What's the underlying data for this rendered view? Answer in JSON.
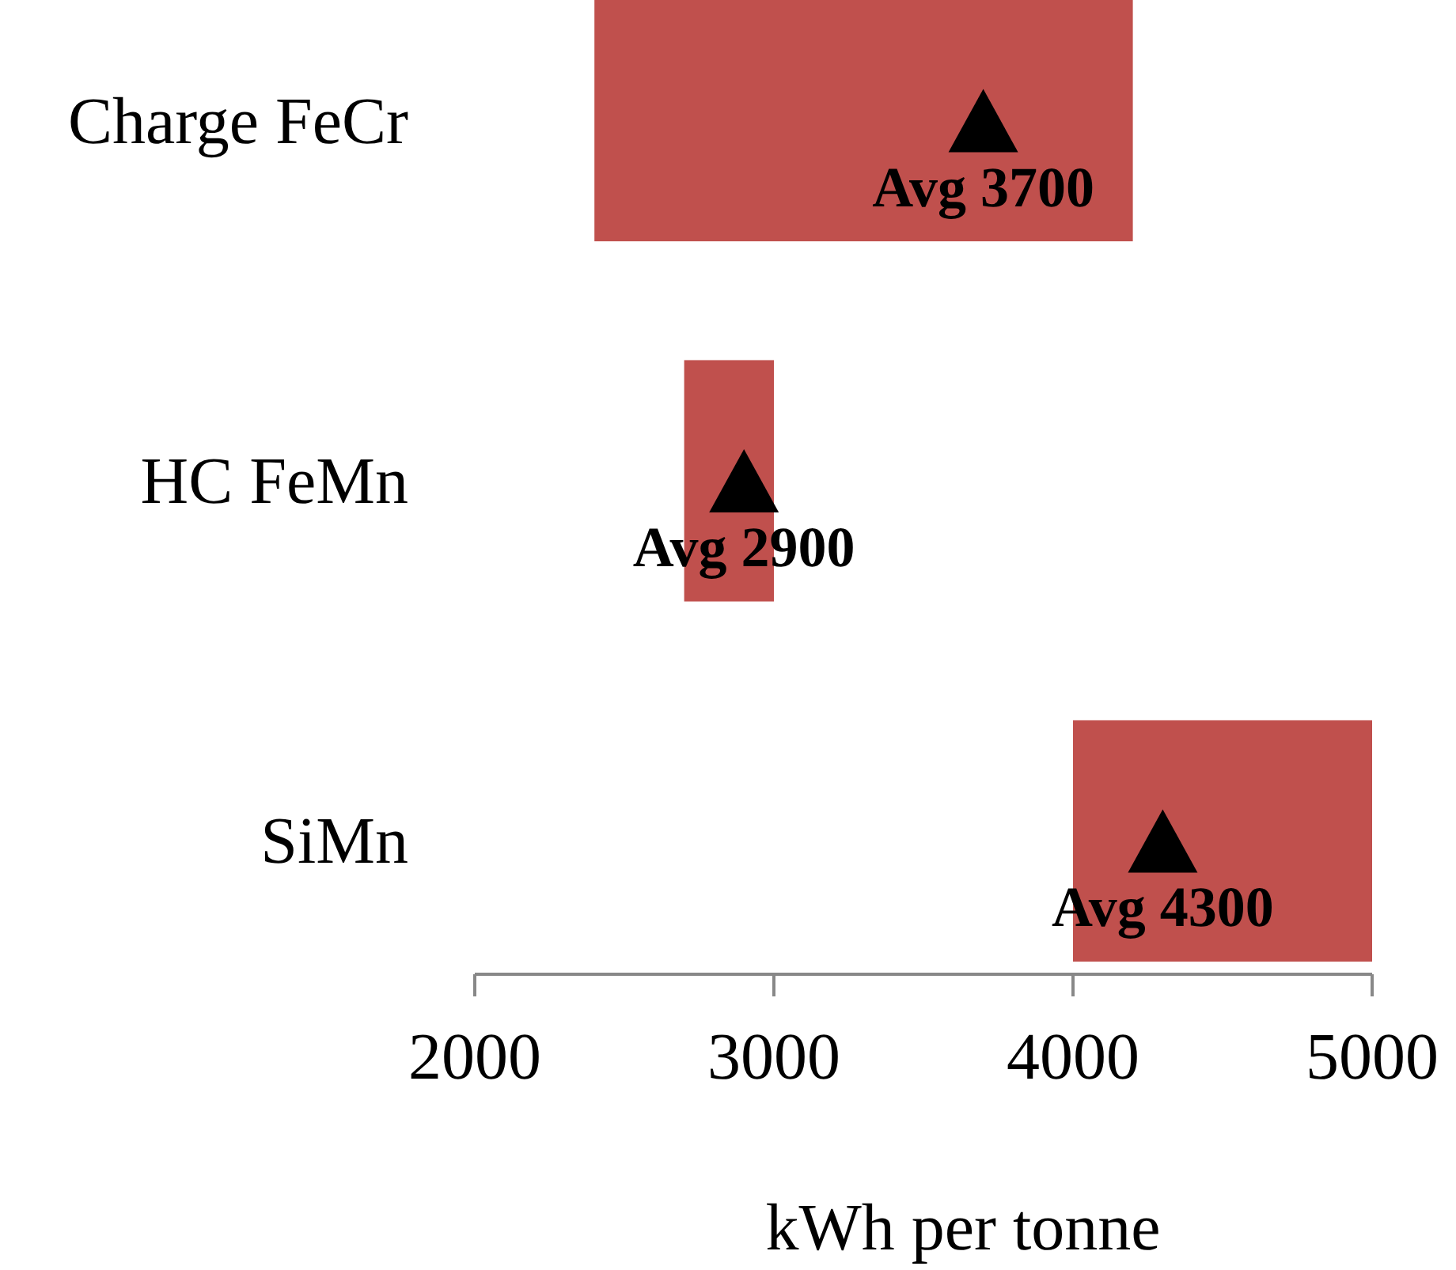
{
  "chart_data": {
    "type": "bar",
    "orientation": "horizontal",
    "xlabel": "kWh per tonne",
    "categories": [
      "Charge FeCr",
      "HC FeMn",
      "SiMn"
    ],
    "series": [
      {
        "type": "bar",
        "color": "#c0504d",
        "base": [
          2400,
          2700,
          4000
        ],
        "values": [
          1800,
          300,
          1000
        ]
      },
      {
        "type": "scatter",
        "marker": "triangle",
        "color": "#000000",
        "x": [
          "Charge FeCr",
          "HC FeMn",
          "SiMn"
        ],
        "values": [
          3700,
          2900,
          4300
        ],
        "value_labels": [
          "Avg 3700",
          "Avg 2900",
          "Avg 4300"
        ]
      }
    ],
    "xlim": [
      2000,
      5000
    ],
    "xticks": [
      2000,
      3000,
      4000,
      5000
    ],
    "grid": false,
    "legend": false
  }
}
